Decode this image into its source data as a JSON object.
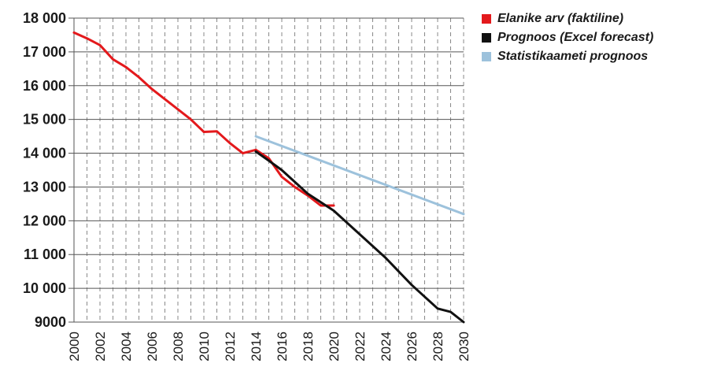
{
  "chart_data": {
    "type": "line",
    "title": "",
    "xlabel": "",
    "ylabel": "",
    "xlim": [
      2000,
      2030
    ],
    "ylim": [
      9000,
      18000
    ],
    "x_ticks": [
      "2000",
      "2002",
      "2004",
      "2006",
      "2008",
      "2010",
      "2012",
      "2014",
      "2016",
      "2018",
      "2020",
      "2022",
      "2024",
      "2026",
      "2028",
      "2030"
    ],
    "y_ticks": [
      {
        "value": 9000,
        "label": "9000"
      },
      {
        "value": 10000,
        "label": "10 000"
      },
      {
        "value": 11000,
        "label": "11 000"
      },
      {
        "value": 12000,
        "label": "12 000"
      },
      {
        "value": 13000,
        "label": "13 000"
      },
      {
        "value": 14000,
        "label": "14 000"
      },
      {
        "value": 15000,
        "label": "15 000"
      },
      {
        "value": 16000,
        "label": "16 000"
      },
      {
        "value": 17000,
        "label": "17 000"
      },
      {
        "value": 18000,
        "label": "18 000"
      }
    ],
    "grid": {
      "horizontal": "solid",
      "vertical": "dashed"
    },
    "legend_position": "top-right",
    "series": [
      {
        "name": "Elanike arv (faktiline)",
        "color": "#e3191c",
        "x": [
          2000,
          2001,
          2002,
          2003,
          2004,
          2005,
          2006,
          2007,
          2008,
          2009,
          2010,
          2011,
          2012,
          2013,
          2014,
          2015,
          2016,
          2017,
          2018,
          2019,
          2020
        ],
        "y": [
          17570,
          17400,
          17200,
          16780,
          16550,
          16250,
          15900,
          15600,
          15300,
          15000,
          14630,
          14650,
          14300,
          14000,
          14100,
          13850,
          13300,
          13000,
          12750,
          12450,
          12450
        ]
      },
      {
        "name": "Prognoos (Excel forecast)",
        "color": "#111111",
        "x": [
          2014,
          2015,
          2016,
          2017,
          2018,
          2019,
          2020,
          2021,
          2022,
          2023,
          2024,
          2025,
          2026,
          2027,
          2028,
          2029,
          2030
        ],
        "y": [
          14050,
          13780,
          13500,
          13150,
          12800,
          12550,
          12300,
          11950,
          11600,
          11250,
          10900,
          10500,
          10100,
          9750,
          9400,
          9300,
          9000
        ]
      },
      {
        "name": "Statistikaameti prognoos",
        "color": "#9dc2dc",
        "x": [
          2014,
          2030
        ],
        "y": [
          14500,
          12200
        ]
      }
    ]
  }
}
